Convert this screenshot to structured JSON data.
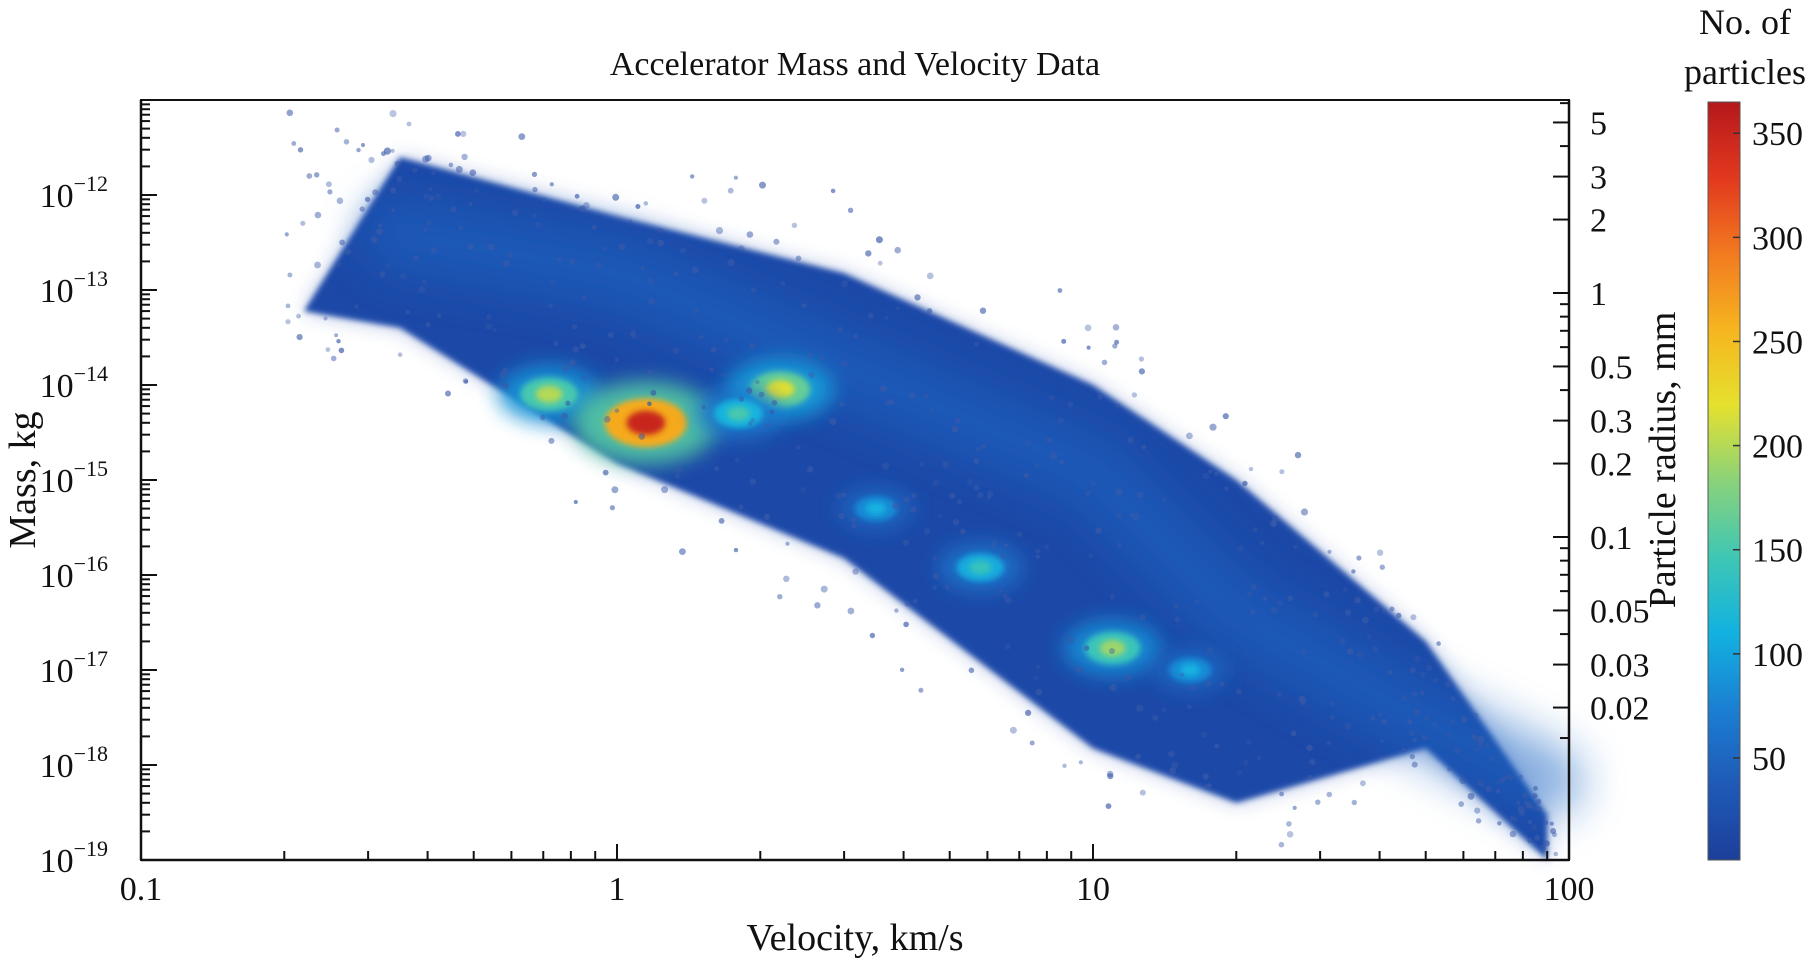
{
  "chart_data": {
    "type": "heatmap",
    "title": "Accelerator Mass and Velocity Data",
    "xlabel": "Velocity, km/s",
    "ylabel": "Mass, kg",
    "y2label": "Particle radius, mm",
    "xscale": "log",
    "yscale": "log",
    "xlim": [
      0.1,
      100
    ],
    "ylim": [
      1e-19,
      1e-11
    ],
    "grid": false,
    "x_ticks": [
      {
        "value": 0.1,
        "label": "0.1"
      },
      {
        "value": 1,
        "label": "1"
      },
      {
        "value": 10,
        "label": "10"
      },
      {
        "value": 100,
        "label": "100"
      }
    ],
    "y_ticks": [
      {
        "exp": -19,
        "base": "10",
        "sup": "−19"
      },
      {
        "exp": -18,
        "base": "10",
        "sup": "−18"
      },
      {
        "exp": -17,
        "base": "10",
        "sup": "−17"
      },
      {
        "exp": -16,
        "base": "10",
        "sup": "−16"
      },
      {
        "exp": -15,
        "base": "10",
        "sup": "−15"
      },
      {
        "exp": -14,
        "base": "10",
        "sup": "−14"
      },
      {
        "exp": -13,
        "base": "10",
        "sup": "−13"
      },
      {
        "exp": -12,
        "base": "10",
        "sup": "−12"
      }
    ],
    "y2_ticks": [
      {
        "value": 5,
        "label": "5"
      },
      {
        "value": 3,
        "label": "3"
      },
      {
        "value": 2,
        "label": "2"
      },
      {
        "value": 1,
        "label": "1"
      },
      {
        "value": 0.5,
        "label": "0.5"
      },
      {
        "value": 0.3,
        "label": "0.3"
      },
      {
        "value": 0.2,
        "label": "0.2"
      },
      {
        "value": 0.1,
        "label": "0.1"
      },
      {
        "value": 0.05,
        "label": "0.05"
      },
      {
        "value": 0.03,
        "label": "0.03"
      },
      {
        "value": 0.02,
        "label": "0.02"
      }
    ],
    "colorbar": {
      "title_line1": "No. of",
      "title_line2": "particles",
      "range": [
        1,
        365
      ],
      "ticks": [
        {
          "value": 50,
          "label": "50"
        },
        {
          "value": 100,
          "label": "100"
        },
        {
          "value": 150,
          "label": "150"
        },
        {
          "value": 200,
          "label": "200"
        },
        {
          "value": 250,
          "label": "250"
        },
        {
          "value": 300,
          "label": "300"
        },
        {
          "value": 350,
          "label": "350"
        }
      ],
      "colors": [
        "#1c3f9a",
        "#1f5ab8",
        "#1b7fd2",
        "#12b2e0",
        "#3fc7b4",
        "#8ad27a",
        "#e5e12e",
        "#f6b51f",
        "#f27a20",
        "#e2381e",
        "#b5171b"
      ]
    },
    "density_band": {
      "upper_edge": [
        [
          0.35,
          2.5e-12
        ],
        [
          1,
          6e-13
        ],
        [
          3,
          1.5e-13
        ],
        [
          10,
          1e-14
        ],
        [
          20,
          1e-15
        ],
        [
          50,
          2e-17
        ],
        [
          90,
          3e-19
        ]
      ],
      "lower_edge": [
        [
          0.22,
          6e-14
        ],
        [
          0.35,
          4e-14
        ],
        [
          1,
          1.5e-15
        ],
        [
          3,
          1.5e-16
        ],
        [
          10,
          1.5e-18
        ],
        [
          20,
          4e-19
        ],
        [
          50,
          1.5e-18
        ],
        [
          90,
          1e-19
        ]
      ]
    },
    "clusters": [
      {
        "velocity": 0.72,
        "mass": 8e-15,
        "count": 200
      },
      {
        "velocity": 1.15,
        "mass": 4e-15,
        "count": 350
      },
      {
        "velocity": 2.2,
        "mass": 9e-15,
        "count": 220
      },
      {
        "velocity": 1.8,
        "mass": 5e-15,
        "count": 150
      },
      {
        "velocity": 3.5,
        "mass": 5e-16,
        "count": 110
      },
      {
        "velocity": 5.8,
        "mass": 1.2e-16,
        "count": 140
      },
      {
        "velocity": 11,
        "mass": 1.7e-17,
        "count": 190
      },
      {
        "velocity": 16,
        "mass": 1e-17,
        "count": 110
      }
    ]
  }
}
